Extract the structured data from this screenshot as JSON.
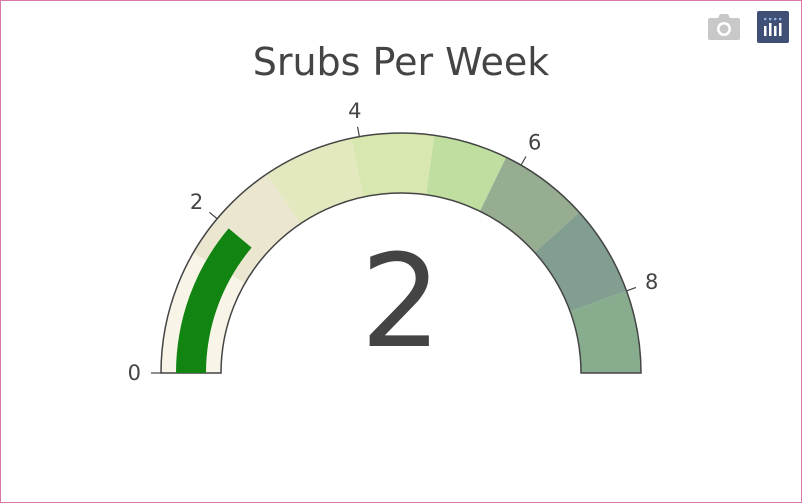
{
  "modebar": {
    "buttons": [
      {
        "name": "camera-icon"
      },
      {
        "name": "plotly-logo-icon"
      }
    ]
  },
  "chart_data": {
    "type": "gauge",
    "title": "Srubs Per Week",
    "value": 2,
    "value_label": "2",
    "range": [
      0,
      9
    ],
    "bar_color": "#128412",
    "background_color": "#f8f5e8",
    "steps": [
      {
        "range": [
          0,
          1.5
        ],
        "color": "#f8f5e8"
      },
      {
        "range": [
          1.5,
          2.8
        ],
        "color": "#ebe6cf"
      },
      {
        "range": [
          2.8,
          3.9
        ],
        "color": "#e3e8bf"
      },
      {
        "range": [
          3.9,
          4.9
        ],
        "color": "#d8e7b0"
      },
      {
        "range": [
          4.9,
          5.8
        ],
        "color": "#c0dea0"
      },
      {
        "range": [
          5.8,
          6.9
        ],
        "color": "#97ad91"
      },
      {
        "range": [
          6.9,
          8.0
        ],
        "color": "#829e90"
      },
      {
        "range": [
          8.0,
          9.0
        ],
        "color": "#87ac8e"
      }
    ],
    "ticks": [
      {
        "value": 0,
        "label": "0"
      },
      {
        "value": 2,
        "label": "2"
      },
      {
        "value": 4,
        "label": "4"
      },
      {
        "value": 6,
        "label": "6"
      },
      {
        "value": 8,
        "label": "8"
      }
    ]
  }
}
